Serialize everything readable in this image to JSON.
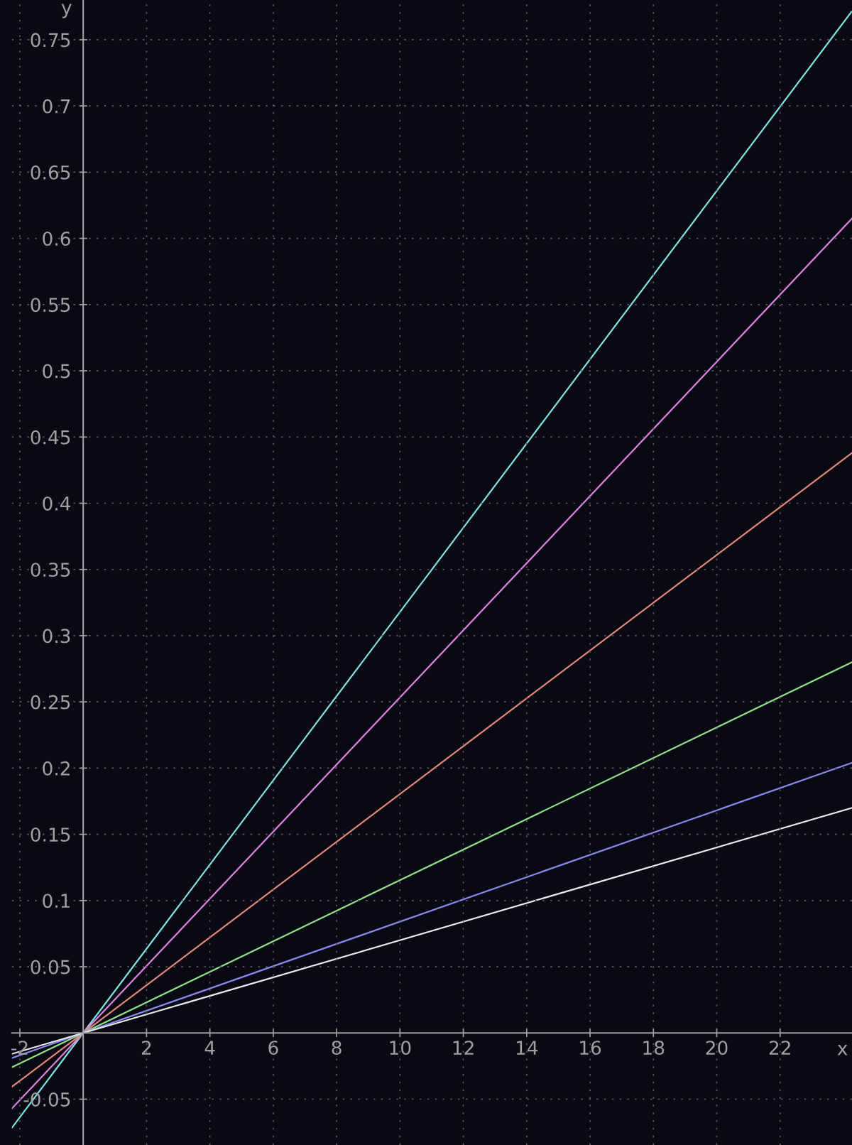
{
  "chart_data": {
    "type": "line",
    "xlabel": "x",
    "ylabel": "y",
    "xlim": [
      -2.25,
      24.27
    ],
    "ylim": [
      -0.0846,
      0.78
    ],
    "xticks": [
      -2,
      2,
      4,
      6,
      8,
      10,
      12,
      14,
      16,
      18,
      20,
      22
    ],
    "yticks": [
      -0.05,
      0.05,
      0.1,
      0.15,
      0.2,
      0.25,
      0.3,
      0.35,
      0.4,
      0.45,
      0.5,
      0.55,
      0.6,
      0.65,
      0.7,
      0.75
    ],
    "grid": true,
    "legend": false,
    "series": [
      {
        "color": "#80e0e0",
        "x": [
          -2.25,
          0,
          24.25
        ],
        "values": [
          -0.0716,
          0,
          0.771
        ]
      },
      {
        "color": "#e080e0",
        "x": [
          -2.25,
          0,
          24.27
        ],
        "values": [
          -0.057,
          0,
          0.615
        ]
      },
      {
        "color": "#e08878",
        "x": [
          -2.25,
          0,
          24.27
        ],
        "values": [
          -0.0406,
          0,
          0.438
        ]
      },
      {
        "color": "#90e088",
        "x": [
          -2.25,
          0,
          24.27
        ],
        "values": [
          -0.0259,
          0,
          0.28
        ]
      },
      {
        "color": "#8888ee",
        "x": [
          -2.25,
          0,
          24.27
        ],
        "values": [
          -0.0189,
          0,
          0.204
        ]
      },
      {
        "color": "#e8e8e8",
        "x": [
          -2.25,
          0,
          24.27
        ],
        "values": [
          -0.0158,
          0,
          0.17
        ]
      }
    ]
  }
}
